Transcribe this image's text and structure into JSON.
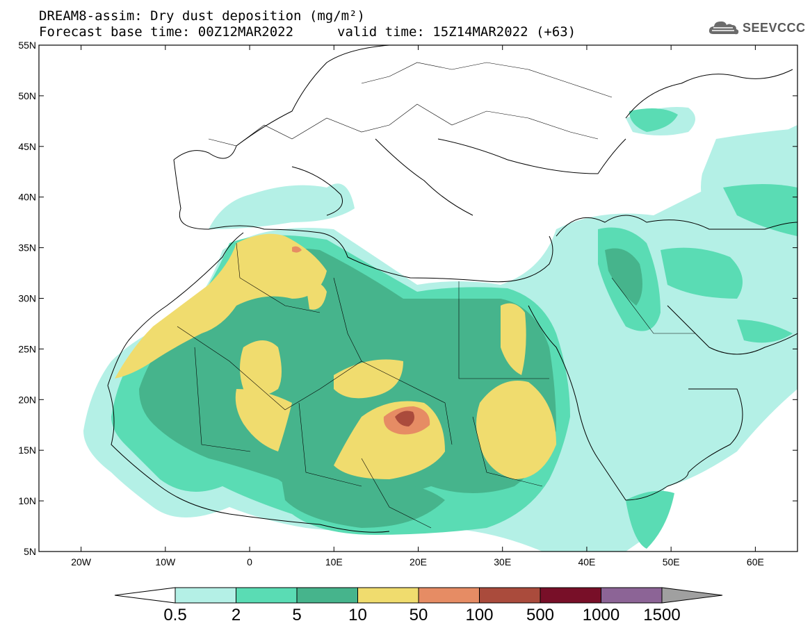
{
  "header": {
    "title_line1": "DREAM8-assim: Dry dust deposition (mg/m²)",
    "title_line2": "Forecast base time: 00Z12MAR2022",
    "valid_time": "valid time: 15Z14MAR2022 (+63)",
    "logo_text": "SEEVCCC"
  },
  "axes": {
    "lat_labels": [
      "55N",
      "50N",
      "45N",
      "40N",
      "35N",
      "30N",
      "25N",
      "20N",
      "15N",
      "10N",
      "5N"
    ],
    "lat_values": [
      55,
      50,
      45,
      40,
      35,
      30,
      25,
      20,
      15,
      10,
      5
    ],
    "lon_labels": [
      "20W",
      "10W",
      "0",
      "10E",
      "20E",
      "30E",
      "40E",
      "50E",
      "60E"
    ],
    "lon_values": [
      -20,
      -10,
      0,
      10,
      20,
      30,
      40,
      50,
      60
    ],
    "lon_range": [
      -25,
      65
    ],
    "lat_range": [
      5,
      55
    ]
  },
  "colorbar": {
    "labels": [
      "0.5",
      "2",
      "5",
      "10",
      "50",
      "100",
      "500",
      "1000",
      "1500"
    ],
    "colors": [
      "#b4f0e6",
      "#5adcb4",
      "#46b48c",
      "#f0dc6e",
      "#e68c64",
      "#aa4b3c",
      "#780f28",
      "#8c6496",
      "#a0a0a0"
    ]
  }
}
